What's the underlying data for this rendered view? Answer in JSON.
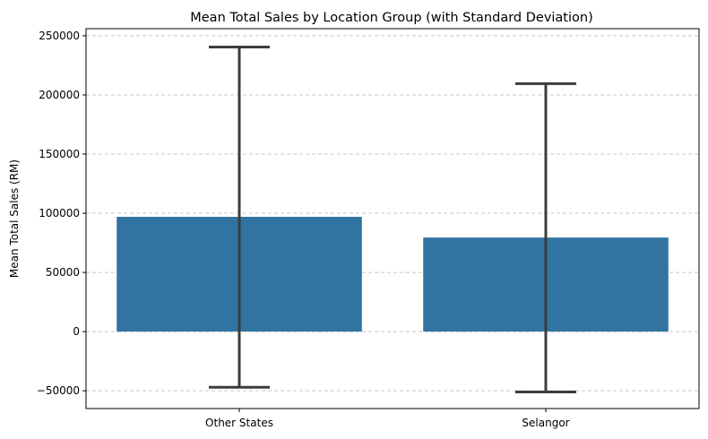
{
  "chart_data": {
    "type": "bar",
    "title": "Mean Total Sales by Location Group (with Standard Deviation)",
    "xlabel": "",
    "ylabel": "Mean Total Sales (RM)",
    "categories": [
      "Other States",
      "Selangor"
    ],
    "values": [
      97000,
      79500
    ],
    "error_low": [
      -47000,
      -51000
    ],
    "error_high": [
      240500,
      209500
    ],
    "ylim": [
      -65000,
      256000
    ],
    "yticks": [
      -50000,
      0,
      50000,
      100000,
      150000,
      200000,
      250000
    ],
    "ytick_labels": [
      "−50000",
      "0",
      "50000",
      "100000",
      "150000",
      "200000",
      "250000"
    ],
    "grid": "y-dashed",
    "bar_color": "#3274a1",
    "error_color": "#3c3c3c",
    "grid_color": "#c8c8c8"
  }
}
